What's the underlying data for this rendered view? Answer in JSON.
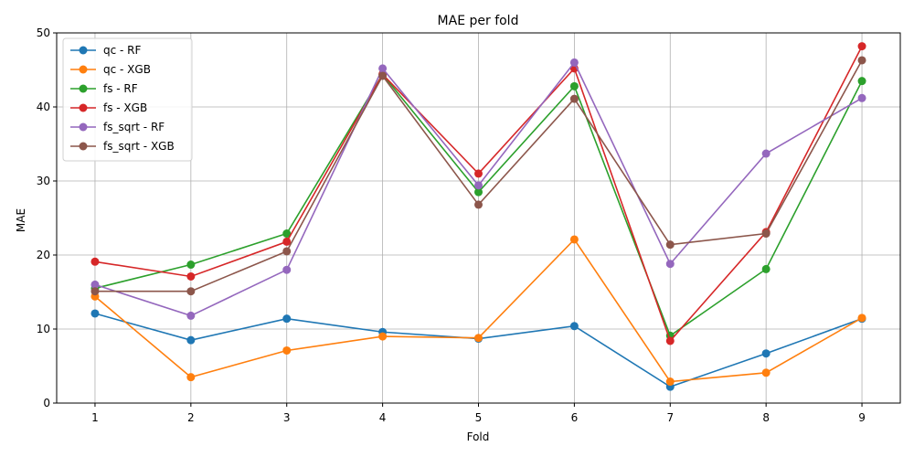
{
  "chart_data": {
    "type": "line",
    "title": "MAE per fold",
    "xlabel": "Fold",
    "ylabel": "MAE",
    "x": [
      1,
      2,
      3,
      4,
      5,
      6,
      7,
      8,
      9
    ],
    "xlim": [
      0.6,
      9.4
    ],
    "ylim": [
      0,
      50
    ],
    "yticks": [
      0,
      10,
      20,
      30,
      40,
      50
    ],
    "grid": true,
    "legend_position": "top-left",
    "series": [
      {
        "name": "qc - RF",
        "color": "#1f77b4",
        "values": [
          12.1,
          8.5,
          11.4,
          9.6,
          8.7,
          10.4,
          2.2,
          6.7,
          11.4
        ]
      },
      {
        "name": "qc - XGB",
        "color": "#ff7f0e",
        "values": [
          14.4,
          3.5,
          7.1,
          9.0,
          8.8,
          22.1,
          2.9,
          4.1,
          11.5
        ]
      },
      {
        "name": "fs - RF",
        "color": "#2ca02c",
        "values": [
          15.5,
          18.7,
          22.9,
          44.4,
          28.5,
          42.8,
          9.1,
          18.1,
          43.5
        ]
      },
      {
        "name": "fs - XGB",
        "color": "#d62728",
        "values": [
          19.1,
          17.1,
          21.8,
          44.4,
          31.0,
          45.2,
          8.4,
          23.1,
          48.2
        ]
      },
      {
        "name": "fs_sqrt - RF",
        "color": "#9467bd",
        "values": [
          16.0,
          11.8,
          18.0,
          45.2,
          29.4,
          46.0,
          18.8,
          33.7,
          41.2
        ]
      },
      {
        "name": "fs_sqrt - XGB",
        "color": "#8c564b",
        "values": [
          15.1,
          15.1,
          20.5,
          44.2,
          26.8,
          41.1,
          21.4,
          22.9,
          46.3
        ]
      }
    ]
  }
}
